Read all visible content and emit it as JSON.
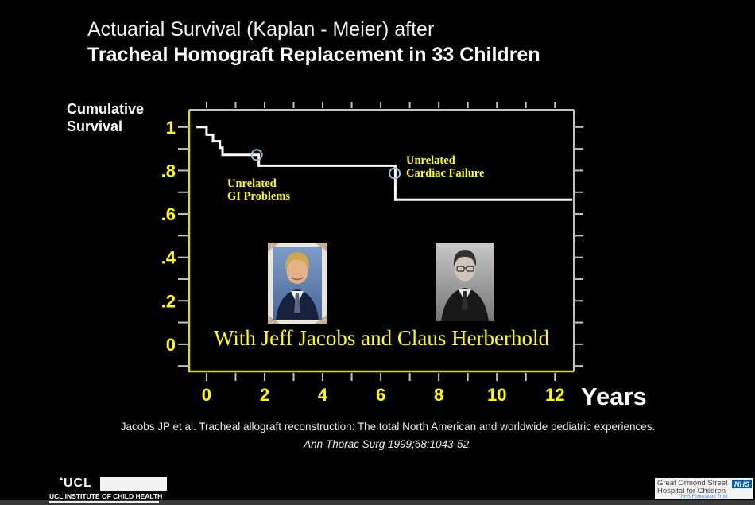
{
  "title": {
    "line1": "Actuarial Survival (Kaplan - Meier) after",
    "line2": "Tracheal Homograft Replacement in 33 Children"
  },
  "axis_title": {
    "line1": "Cumulative",
    "line2": "Survival"
  },
  "x_unit_label": "Years",
  "caption": "With Jeff Jacobs and Claus Herberhold",
  "citation": {
    "line1": "Jacobs JP et al.  Tracheal allograft reconstruction:  The total North American and worldwide pediatric experiences.",
    "line2": "Ann Thorac Surg 1999;68:1043-52."
  },
  "annotations": [
    {
      "line1": "Unrelated",
      "line2": "GI Problems"
    },
    {
      "line1": "Unrelated",
      "line2": "Cardiac Failure"
    }
  ],
  "logos": {
    "ucl": {
      "acronym": "UCL",
      "institute": "UCL INSTITUTE OF CHILD HEALTH"
    },
    "gosh": {
      "line1": "Great Ormond Street",
      "line2": "Hospital for Children",
      "nhs": "NHS",
      "trust": "NHS Foundation Trust"
    }
  },
  "colors": {
    "accent_yellow": "#ffff00",
    "axis_yellow": "#d8d81e",
    "tick_gray": "#c2c2c2",
    "curve_white": "#ffffff",
    "marker_blue": "#a3b8d6",
    "nhs_blue": "#005eb8"
  },
  "chart_data": {
    "type": "line",
    "subtype": "kaplan-meier step function",
    "title": "Actuarial Survival (Kaplan - Meier) after Tracheal Homograft Replacement in 33 Children",
    "xlabel": "Years",
    "ylabel": "Cumulative Survival",
    "xlim": [
      -0.6,
      12.65
    ],
    "ylim": [
      -0.125,
      1.08
    ],
    "grid": false,
    "legend": null,
    "x_tick_labels": [
      {
        "value": 0,
        "label": "0"
      },
      {
        "value": 2,
        "label": "2"
      },
      {
        "value": 4,
        "label": "4"
      },
      {
        "value": 6,
        "label": "6"
      },
      {
        "value": 8,
        "label": "8"
      },
      {
        "value": 10,
        "label": "10"
      },
      {
        "value": 12,
        "label": "12"
      }
    ],
    "x_minor_ticks": [
      0,
      1,
      2,
      3,
      4,
      5,
      6,
      7,
      8,
      9,
      10,
      11,
      12
    ],
    "y_tick_labels": [
      {
        "value": 1.0,
        "label": "1"
      },
      {
        "value": 0.8,
        "label": ".8"
      },
      {
        "value": 0.6,
        "label": ".6"
      },
      {
        "value": 0.4,
        "label": ".4"
      },
      {
        "value": 0.2,
        "label": ".2"
      },
      {
        "value": 0.0,
        "label": "0"
      }
    ],
    "y_minor_ticks": [
      1.0,
      0.9,
      0.8,
      0.7,
      0.6,
      0.5,
      0.4,
      0.3,
      0.2,
      0.1,
      0.0,
      -0.1
    ],
    "steps": [
      [
        -0.35,
        1.0
      ],
      [
        0.0,
        1.0
      ],
      [
        0.0,
        0.965
      ],
      [
        0.22,
        0.965
      ],
      [
        0.22,
        0.935
      ],
      [
        0.46,
        0.935
      ],
      [
        0.46,
        0.905
      ],
      [
        0.55,
        0.905
      ],
      [
        0.55,
        0.872
      ],
      [
        1.8,
        0.872
      ],
      [
        1.8,
        0.822
      ],
      [
        6.5,
        0.822
      ],
      [
        6.5,
        0.665
      ],
      [
        12.6,
        0.665
      ]
    ],
    "censor_events": [
      {
        "x": 1.73,
        "y": 0.872,
        "label": "Unrelated GI Problems"
      },
      {
        "x": 6.48,
        "y": 0.787,
        "label": "Unrelated Cardiac Failure"
      }
    ]
  }
}
